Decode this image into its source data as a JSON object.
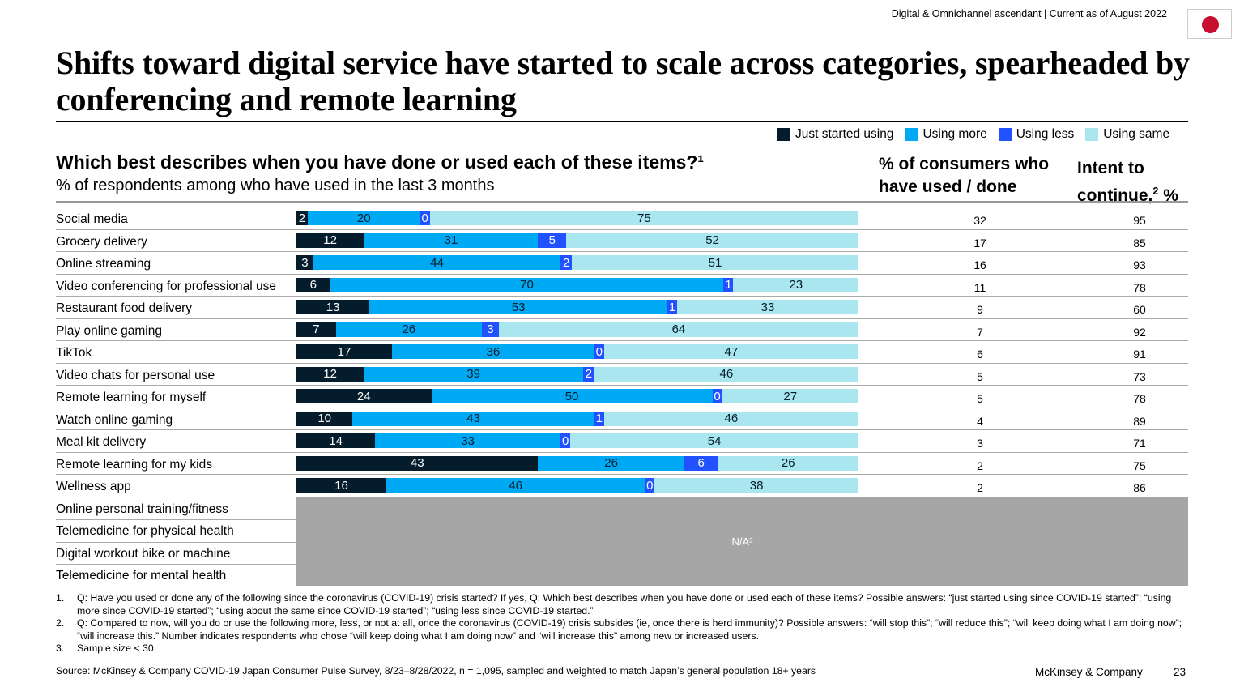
{
  "header": {
    "tracker": "Digital & Omnichannel ascendant | Current as of August 2022",
    "flag": "japan-flag"
  },
  "title": "Shifts toward digital service have started to scale across categories, spearheaded by conferencing and remote learning",
  "question": "Which best describes when you have done or used each of these items?¹",
  "question_sub": "% of respondents among who have used in the last 3 months",
  "col_used": "% of consumers who have used / done",
  "col_intent": "Intent to continue,² %",
  "colors": {
    "just_started": "#051c2c",
    "using_more": "#00a9f4",
    "using_less": "#2251ff",
    "using_same": "#aae6f0",
    "na": "#a6a6a6"
  },
  "chart_data": {
    "type": "bar",
    "stacked": true,
    "orientation": "horizontal",
    "legend": [
      "Just started using",
      "Using more",
      "Using less",
      "Using same"
    ],
    "legend_position": "top-right",
    "categories": [
      "Social media",
      "Grocery delivery",
      "Online streaming",
      "Video conferencing for professional use",
      "Restaurant food delivery",
      "Play online gaming",
      "TikTok",
      "Video chats for personal use",
      "Remote learning for myself",
      "Watch online gaming",
      "Meal kit delivery",
      "Remote learning for my kids",
      "Wellness app",
      "Online personal training/fitness",
      "Telemedicine for physical health",
      "Digital workout bike or machine",
      "Telemedicine for mental health"
    ],
    "series": [
      {
        "name": "Just started using",
        "values": [
          2,
          12,
          3,
          6,
          13,
          7,
          17,
          12,
          24,
          10,
          14,
          43,
          16,
          null,
          null,
          null,
          null
        ]
      },
      {
        "name": "Using more",
        "values": [
          20,
          31,
          44,
          70,
          53,
          26,
          36,
          39,
          50,
          43,
          33,
          26,
          46,
          null,
          null,
          null,
          null
        ]
      },
      {
        "name": "Using less",
        "values": [
          0,
          5,
          2,
          1,
          1,
          3,
          0,
          2,
          0,
          1,
          0,
          6,
          0,
          null,
          null,
          null,
          null
        ]
      },
      {
        "name": "Using same",
        "values": [
          75,
          52,
          51,
          23,
          33,
          64,
          47,
          46,
          27,
          46,
          54,
          26,
          38,
          null,
          null,
          null,
          null
        ]
      }
    ],
    "annotation_social_media": "N/A³",
    "na_label": "N/A³",
    "used_pct": [
      32,
      17,
      16,
      11,
      9,
      7,
      6,
      5,
      5,
      4,
      3,
      2,
      2,
      null,
      null,
      null,
      null
    ],
    "intent_pct": [
      95,
      85,
      93,
      78,
      60,
      92,
      91,
      73,
      78,
      89,
      71,
      75,
      86,
      null,
      null,
      null,
      null
    ]
  },
  "footnotes": [
    {
      "n": "1.",
      "text": "Q: Have you used or done any of the following since the coronavirus (COVID-19) crisis started? If yes, Q: Which best describes when you have done or used each of these items? Possible answers: “just started using since COVID-19 started”; “using more since COVID-19 started”; “using about the same since COVID-19 started”; “using less since COVID-19 started.”"
    },
    {
      "n": "2.",
      "text": "Q: Compared to now, will you do or use the following more, less, or not at all, once the coronavirus (COVID-19) crisis subsides (ie, once there is herd immunity)? Possible answers: “will stop this”; “will reduce this”; “will keep doing what I am doing now”; “will increase this.” Number indicates respondents who chose “will keep doing what I am doing now” and “will increase this” among new or increased users."
    },
    {
      "n": "3.",
      "text": "Sample size < 30."
    }
  ],
  "source": "Source: McKinsey & Company COVID-19 Japan Consumer Pulse Survey, 8/23–8/28/2022, n = 1,095, sampled and weighted to match Japan’s general population 18+ years",
  "brand": "McKinsey & Company",
  "page": "23"
}
